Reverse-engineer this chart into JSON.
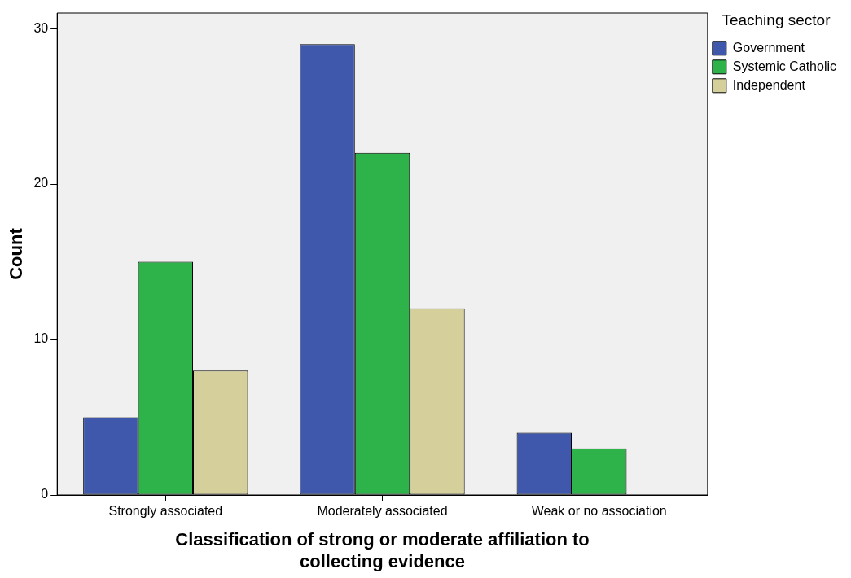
{
  "chart_data": {
    "type": "bar",
    "xlabel": "Classification of strong or moderate affiliation to collecting evidence",
    "ylabel": "Count",
    "legend_title": "Teaching sector",
    "categories": [
      "Strongly associated",
      "Moderately associated",
      "Weak or no association"
    ],
    "series": [
      {
        "name": "Government",
        "color": "#3f58ab",
        "values": [
          5,
          29,
          4
        ]
      },
      {
        "name": "Systemic Catholic",
        "color": "#2db34a",
        "values": [
          15,
          22,
          3
        ]
      },
      {
        "name": "Independent",
        "color": "#d4cf9b",
        "values": [
          8,
          12,
          0
        ]
      }
    ],
    "ylim": [
      0,
      31
    ],
    "yticks": [
      0,
      10,
      20,
      30
    ],
    "grid": false,
    "legend": "top right"
  }
}
